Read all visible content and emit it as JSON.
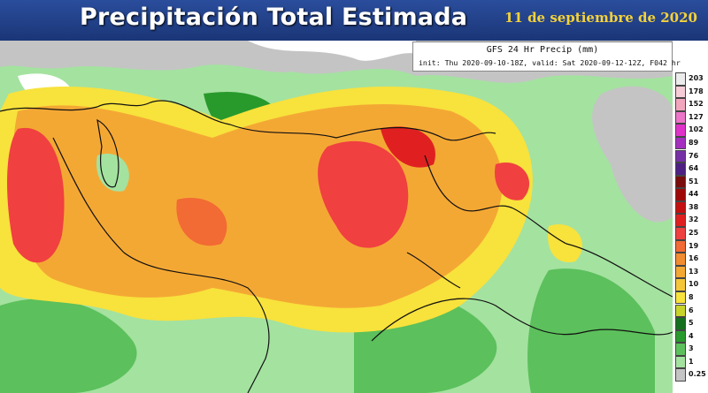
{
  "header": {
    "title": "Precipitación Total Estimada",
    "date": "11 de septiembre de 2020"
  },
  "map": {
    "title": "GFS 24 Hr Precip (mm)",
    "init": "init: Thu 2020-09-10-18Z, valid: Sat 2020-09-12-12Z, F042 hr"
  },
  "legend": {
    "levels": [
      {
        "value": 203,
        "color": "#ececec"
      },
      {
        "value": 178,
        "color": "#f6cdd6"
      },
      {
        "value": 152,
        "color": "#f2a6bd"
      },
      {
        "value": 127,
        "color": "#ec74c9"
      },
      {
        "value": 102,
        "color": "#e032c8"
      },
      {
        "value": 89,
        "color": "#a52ec0"
      },
      {
        "value": 76,
        "color": "#7630a6"
      },
      {
        "value": 64,
        "color": "#4e2084"
      },
      {
        "value": 51,
        "color": "#7a0c0c"
      },
      {
        "value": 44,
        "color": "#a00808"
      },
      {
        "value": 38,
        "color": "#c41010"
      },
      {
        "value": 32,
        "color": "#e02020"
      },
      {
        "value": 25,
        "color": "#f04040"
      },
      {
        "value": 19,
        "color": "#f26a34"
      },
      {
        "value": 16,
        "color": "#f28c30"
      },
      {
        "value": 13,
        "color": "#f4a834"
      },
      {
        "value": 10,
        "color": "#f6c63a"
      },
      {
        "value": 8,
        "color": "#f8e23c"
      },
      {
        "value": 6,
        "color": "#c8d42a"
      },
      {
        "value": 5,
        "color": "#14701e"
      },
      {
        "value": 4,
        "color": "#289a2c"
      },
      {
        "value": 3,
        "color": "#5cc05c"
      },
      {
        "value": 1,
        "color": "#a4e2a0"
      },
      {
        "value": 0.25,
        "color": "#c4c4c4"
      }
    ]
  }
}
